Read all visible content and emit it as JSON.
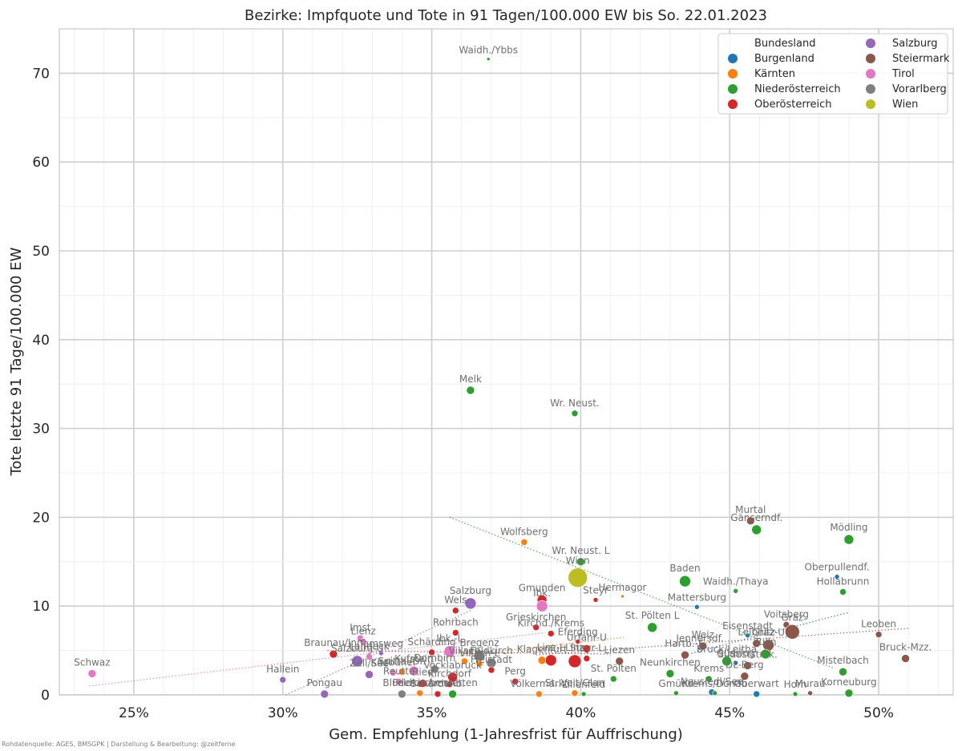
{
  "title": "Bezirke: Impfquote und Tote in 91 Tagen/100.000 EW bis So. 22.01.2023",
  "footer": "Rohdatenquelle: AGES, BMSGPK | Darstellung & Bearbeitung: @zeitferne",
  "chart_data": {
    "type": "scatter",
    "title": "Bezirke: Impfquote und Tote in 91 Tagen/100.000 EW bis So. 22.01.2023",
    "xlabel": "Gem. Empfehlung (1-Jahresfrist für Auffrischung)",
    "ylabel": "Tote letzte 91 Tage/100.000 EW",
    "xlim": [
      22.5,
      52.5
    ],
    "ylim": [
      0,
      75
    ],
    "x_ticks": [
      25,
      30,
      35,
      40,
      45,
      50
    ],
    "x_tick_labels": [
      "25%",
      "30%",
      "35%",
      "40%",
      "45%",
      "50%"
    ],
    "y_ticks": [
      0,
      10,
      20,
      30,
      40,
      50,
      60,
      70
    ],
    "y_tick_labels": [
      "0",
      "10",
      "20",
      "30",
      "40",
      "50",
      "60",
      "70"
    ],
    "grid": true,
    "point_size_meaning": "population",
    "legend": {
      "title": "Bundesland",
      "placement": "top-right",
      "entries": [
        {
          "name": "Burgenland",
          "color": "#1f77b4"
        },
        {
          "name": "Kärnten",
          "color": "#ff7f0e"
        },
        {
          "name": "Niederösterreich",
          "color": "#2ca02c"
        },
        {
          "name": "Oberösterreich",
          "color": "#d62728"
        },
        {
          "name": "Salzburg",
          "color": "#9467bd"
        },
        {
          "name": "Steiermark",
          "color": "#8c564b"
        },
        {
          "name": "Tirol",
          "color": "#e377c2"
        },
        {
          "name": "Vorarlberg",
          "color": "#7f7f7f"
        },
        {
          "name": "Wien",
          "color": "#bcbd22"
        }
      ]
    },
    "trendlines": [
      {
        "series": "Niederösterreich",
        "x": [
          35.6,
          48.5
        ],
        "y": [
          20,
          3
        ]
      },
      {
        "series": "Salzburg",
        "x": [
          30.1,
          36.3
        ],
        "y": [
          0,
          9.5
        ]
      },
      {
        "series": "Tirol",
        "x": [
          23.5,
          38.8
        ],
        "y": [
          1,
          7
        ]
      },
      {
        "series": "Burgenland",
        "x": [
          43.5,
          49.0
        ],
        "y": [
          4.5,
          9.3
        ]
      },
      {
        "series": "Steiermark",
        "x": [
          38.5,
          51.0
        ],
        "y": [
          4.5,
          7.5
        ]
      },
      {
        "series": "Kärnten",
        "x": [
          33.5,
          41.5
        ],
        "y": [
          3.5,
          6.5
        ]
      },
      {
        "series": "Oberösterreich",
        "x": [
          31.5,
          41.0
        ],
        "y": [
          5.0,
          4.6
        ]
      }
    ],
    "points": [
      {
        "label": "Waidh./Ybbs",
        "state": "Niederösterreich",
        "x": 36.9,
        "y": 71.6,
        "size": 2
      },
      {
        "label": "Melk",
        "state": "Niederösterreich",
        "x": 36.3,
        "y": 34.3,
        "size": 5
      },
      {
        "label": "Wr. Neust.",
        "state": "Niederösterreich",
        "x": 39.8,
        "y": 31.7,
        "size": 4
      },
      {
        "label": "Murtal",
        "state": "Steiermark",
        "x": 45.7,
        "y": 19.6,
        "size": 5
      },
      {
        "label": "Gänserndf.",
        "state": "Niederösterreich",
        "x": 45.9,
        "y": 18.6,
        "size": 6
      },
      {
        "label": "Mödling",
        "state": "Niederösterreich",
        "x": 49.0,
        "y": 17.5,
        "size": 6
      },
      {
        "label": "Wolfsberg",
        "state": "Kärnten",
        "x": 38.1,
        "y": 17.2,
        "size": 4
      },
      {
        "label": "Wr. Neust. L",
        "state": "Niederösterreich",
        "x": 40.0,
        "y": 15.0,
        "size": 5
      },
      {
        "label": "Oberpullendf.",
        "state": "Burgenland",
        "x": 48.6,
        "y": 13.3,
        "size": 3
      },
      {
        "label": "Wien",
        "state": "Wien",
        "x": 39.9,
        "y": 13.2,
        "size": 12
      },
      {
        "label": "Baden",
        "state": "Niederösterreich",
        "x": 43.5,
        "y": 12.8,
        "size": 7
      },
      {
        "label": "Hollabrunn",
        "state": "Niederösterreich",
        "x": 48.8,
        "y": 11.6,
        "size": 4
      },
      {
        "label": "Waidh./Thaya",
        "state": "Niederösterreich",
        "x": 45.2,
        "y": 11.7,
        "size": 3
      },
      {
        "label": "Hermagor",
        "state": "Kärnten",
        "x": 41.4,
        "y": 11.1,
        "size": 2
      },
      {
        "label": "Steyr",
        "state": "Oberösterreich",
        "x": 40.5,
        "y": 10.7,
        "size": 3
      },
      {
        "label": "Gmunden",
        "state": "Oberösterreich",
        "x": 38.7,
        "y": 10.7,
        "size": 6
      },
      {
        "label": "Ibk.",
        "state": "Tirol",
        "x": 38.7,
        "y": 10.0,
        "size": 7
      },
      {
        "label": "Salzburg",
        "state": "Salzburg",
        "x": 36.3,
        "y": 10.3,
        "size": 7
      },
      {
        "label": "Wels",
        "state": "Oberösterreich",
        "x": 35.8,
        "y": 9.5,
        "size": 4
      },
      {
        "label": "Mattersburg",
        "state": "Burgenland",
        "x": 43.9,
        "y": 9.9,
        "size": 3
      },
      {
        "label": "St. Pölten L",
        "state": "Niederösterreich",
        "x": 42.4,
        "y": 7.6,
        "size": 6
      },
      {
        "label": "Voitsberg",
        "state": "Steiermark",
        "x": 46.9,
        "y": 7.9,
        "size": 4
      },
      {
        "label": "Graz",
        "state": "Steiermark",
        "x": 47.1,
        "y": 7.1,
        "size": 9
      },
      {
        "label": "Rohrbach",
        "state": "Oberösterreich",
        "x": 35.8,
        "y": 7.0,
        "size": 4
      },
      {
        "label": "Grieskirchen",
        "state": "Oberösterreich",
        "x": 38.5,
        "y": 7.6,
        "size": 4
      },
      {
        "label": "Kirchd./Krems",
        "state": "Oberösterreich",
        "x": 39.0,
        "y": 6.9,
        "size": 4
      },
      {
        "label": "Leoben",
        "state": "Steiermark",
        "x": 50.0,
        "y": 6.8,
        "size": 4
      },
      {
        "label": "Imst",
        "state": "Tirol",
        "x": 32.6,
        "y": 6.4,
        "size": 4
      },
      {
        "label": "Lienz",
        "state": "Tirol",
        "x": 32.7,
        "y": 6.0,
        "size": 4
      },
      {
        "label": "Eferding",
        "state": "Oberösterreich",
        "x": 39.9,
        "y": 6.0,
        "size": 3
      },
      {
        "label": "Urfahr-U",
        "state": "Oberösterreich",
        "x": 40.2,
        "y": 5.2,
        "size": 5
      },
      {
        "label": "Eisenstadt",
        "state": "Burgenland",
        "x": 45.6,
        "y": 6.7,
        "size": 3
      },
      {
        "label": "Leibnitz",
        "state": "Steiermark",
        "x": 45.9,
        "y": 5.8,
        "size": 5
      },
      {
        "label": "Graz-U",
        "state": "Steiermark",
        "x": 46.3,
        "y": 5.6,
        "size": 7
      },
      {
        "label": "Jennersdf.",
        "state": "Burgenland",
        "x": 44.0,
        "y": 5.3,
        "size": 3
      },
      {
        "label": "Weiz",
        "state": "Steiermark",
        "x": 44.1,
        "y": 5.5,
        "size": 5
      },
      {
        "label": "Hartb.-F.",
        "state": "Steiermark",
        "x": 43.5,
        "y": 4.5,
        "size": 5
      },
      {
        "label": "Braunau/Inn",
        "state": "Oberösterreich",
        "x": 31.7,
        "y": 4.6,
        "size": 5
      },
      {
        "label": "Tamsweg",
        "state": "Salzburg",
        "x": 33.3,
        "y": 4.7,
        "size": 3
      },
      {
        "label": "Salzburg-U",
        "state": "Salzburg",
        "x": 32.5,
        "y": 3.8,
        "size": 7
      },
      {
        "label": "Landeck",
        "state": "Tirol",
        "x": 32.9,
        "y": 4.3,
        "size": 4
      },
      {
        "label": "Ibk.-L",
        "state": "Tirol",
        "x": 35.6,
        "y": 4.9,
        "size": 7
      },
      {
        "label": "Schärding",
        "state": "Oberösterreich",
        "x": 35.0,
        "y": 4.8,
        "size": 4
      },
      {
        "label": "Bregenz",
        "state": "Vorarlberg",
        "x": 36.6,
        "y": 4.4,
        "size": 7
      },
      {
        "label": "Feldkirch",
        "state": "Vorarlberg",
        "x": 37.0,
        "y": 3.6,
        "size": 6
      },
      {
        "label": "Villach",
        "state": "Kärnten",
        "x": 36.1,
        "y": 3.8,
        "size": 4
      },
      {
        "label": "Villach-L",
        "state": "Kärnten",
        "x": 36.6,
        "y": 3.5,
        "size": 4
      },
      {
        "label": "Klagenfurt",
        "state": "Kärnten",
        "x": 38.7,
        "y": 3.9,
        "size": 5
      },
      {
        "label": "Linz-L",
        "state": "Oberösterreich",
        "x": 39.0,
        "y": 3.9,
        "size": 7
      },
      {
        "label": "Linz",
        "state": "Oberösterreich",
        "x": 39.8,
        "y": 3.8,
        "size": 8
      },
      {
        "label": "Steyr-L",
        "state": "Oberösterreich",
        "x": 40.2,
        "y": 4.1,
        "size": 4
      },
      {
        "label": "Liezen",
        "state": "Steiermark",
        "x": 41.3,
        "y": 3.8,
        "size": 5
      },
      {
        "label": "Zell/See",
        "state": "Salzburg",
        "x": 32.9,
        "y": 2.3,
        "size": 5
      },
      {
        "label": "Kufstein",
        "state": "Tirol",
        "x": 34.4,
        "y": 2.7,
        "size": 6
      },
      {
        "label": "Kitzbühel",
        "state": "Tirol",
        "x": 33.7,
        "y": 2.5,
        "size": 4
      },
      {
        "label": "Schwaz",
        "state": "Tirol",
        "x": 23.6,
        "y": 2.4,
        "size": 5
      },
      {
        "label": "Dornbirn",
        "state": "Vorarlberg",
        "x": 35.1,
        "y": 2.9,
        "size": 5
      },
      {
        "label": "Spittal/Dr.",
        "state": "Kärnten",
        "x": 34.0,
        "y": 2.6,
        "size": 4
      },
      {
        "label": "Reutte",
        "state": "Tirol",
        "x": 33.9,
        "y": 1.5,
        "size": 4
      },
      {
        "label": "Vöcklabruck",
        "state": "Oberösterreich",
        "x": 35.7,
        "y": 2.0,
        "size": 6
      },
      {
        "label": "Freistadt",
        "state": "Oberösterreich",
        "x": 37.0,
        "y": 2.8,
        "size": 4
      },
      {
        "label": "Perg",
        "state": "Oberösterreich",
        "x": 37.8,
        "y": 1.5,
        "size": 4
      },
      {
        "label": "Kirchdorf",
        "state": "Oberösterreich",
        "x": 35.6,
        "y": 1.2,
        "size": 4
      },
      {
        "label": "Ried",
        "state": "Oberösterreich",
        "x": 34.7,
        "y": 1.3,
        "size": 5
      },
      {
        "label": "St. Pölten",
        "state": "Niederösterreich",
        "x": 41.1,
        "y": 1.8,
        "size": 4
      },
      {
        "label": "Neunkirchen",
        "state": "Niederösterreich",
        "x": 43.0,
        "y": 2.4,
        "size": 5
      },
      {
        "label": "Krems",
        "state": "Niederösterreich",
        "x": 44.3,
        "y": 1.8,
        "size": 4
      },
      {
        "label": "Bruck/Leitha",
        "state": "Niederösterreich",
        "x": 44.9,
        "y": 3.8,
        "size": 6
      },
      {
        "label": "Güssing",
        "state": "Burgenland",
        "x": 45.2,
        "y": 3.6,
        "size": 3
      },
      {
        "label": "Gmünd",
        "state": "Niederösterreich",
        "x": 43.2,
        "y": 0.2,
        "size": 3
      },
      {
        "label": "Neusiedl/See",
        "state": "Burgenland",
        "x": 44.4,
        "y": 0.3,
        "size": 4
      },
      {
        "label": "Krems/Donau",
        "state": "Niederösterreich",
        "x": 44.5,
        "y": 0.2,
        "size": 3
      },
      {
        "label": "Oberwart",
        "state": "Burgenland",
        "x": 45.9,
        "y": 0.1,
        "size": 4
      },
      {
        "label": "Tulln",
        "state": "Niederösterreich",
        "x": 46.2,
        "y": 4.6,
        "size": 6
      },
      {
        "label": "Südoststmk.",
        "state": "Steiermark",
        "x": 45.6,
        "y": 3.3,
        "size": 5
      },
      {
        "label": "DL-Berg",
        "state": "Steiermark",
        "x": 45.5,
        "y": 2.1,
        "size": 5
      },
      {
        "label": "Mistelbach",
        "state": "Niederösterreich",
        "x": 48.8,
        "y": 2.6,
        "size": 5
      },
      {
        "label": "Bruck-Mzz.",
        "state": "Steiermark",
        "x": 50.9,
        "y": 4.1,
        "size": 5
      },
      {
        "label": "Horn",
        "state": "Niederösterreich",
        "x": 47.2,
        "y": 0.1,
        "size": 3
      },
      {
        "label": "Murau",
        "state": "Steiermark",
        "x": 47.7,
        "y": 0.2,
        "size": 3
      },
      {
        "label": "Korneuburg",
        "state": "Niederösterreich",
        "x": 49.0,
        "y": 0.2,
        "size": 5
      },
      {
        "label": "Hallein",
        "state": "Salzburg",
        "x": 30.0,
        "y": 1.7,
        "size": 4
      },
      {
        "label": "Pongau",
        "state": "Salzburg",
        "x": 31.4,
        "y": 0.1,
        "size": 5
      },
      {
        "label": "Bludenz",
        "state": "Vorarlberg",
        "x": 34.0,
        "y": 0.1,
        "size": 5
      },
      {
        "label": "Feldkirchen",
        "state": "Kärnten",
        "x": 34.6,
        "y": 0.2,
        "size": 4
      },
      {
        "label": "St. Veit/Glan",
        "state": "Kärnten",
        "x": 39.8,
        "y": 0.2,
        "size": 4
      },
      {
        "label": "Völkermarkt",
        "state": "Kärnten",
        "x": 38.6,
        "y": 0.1,
        "size": 4
      },
      {
        "label": "Lilienfeld",
        "state": "Niederösterreich",
        "x": 40.1,
        "y": 0.1,
        "size": 3
      },
      {
        "label": "Amstetten",
        "state": "Niederösterreich",
        "x": 35.7,
        "y": 0.1,
        "size": 5
      },
      {
        "label": "Schardenb.",
        "state": "Oberösterreich",
        "x": 35.2,
        "y": 0.1,
        "size": 4
      }
    ]
  }
}
